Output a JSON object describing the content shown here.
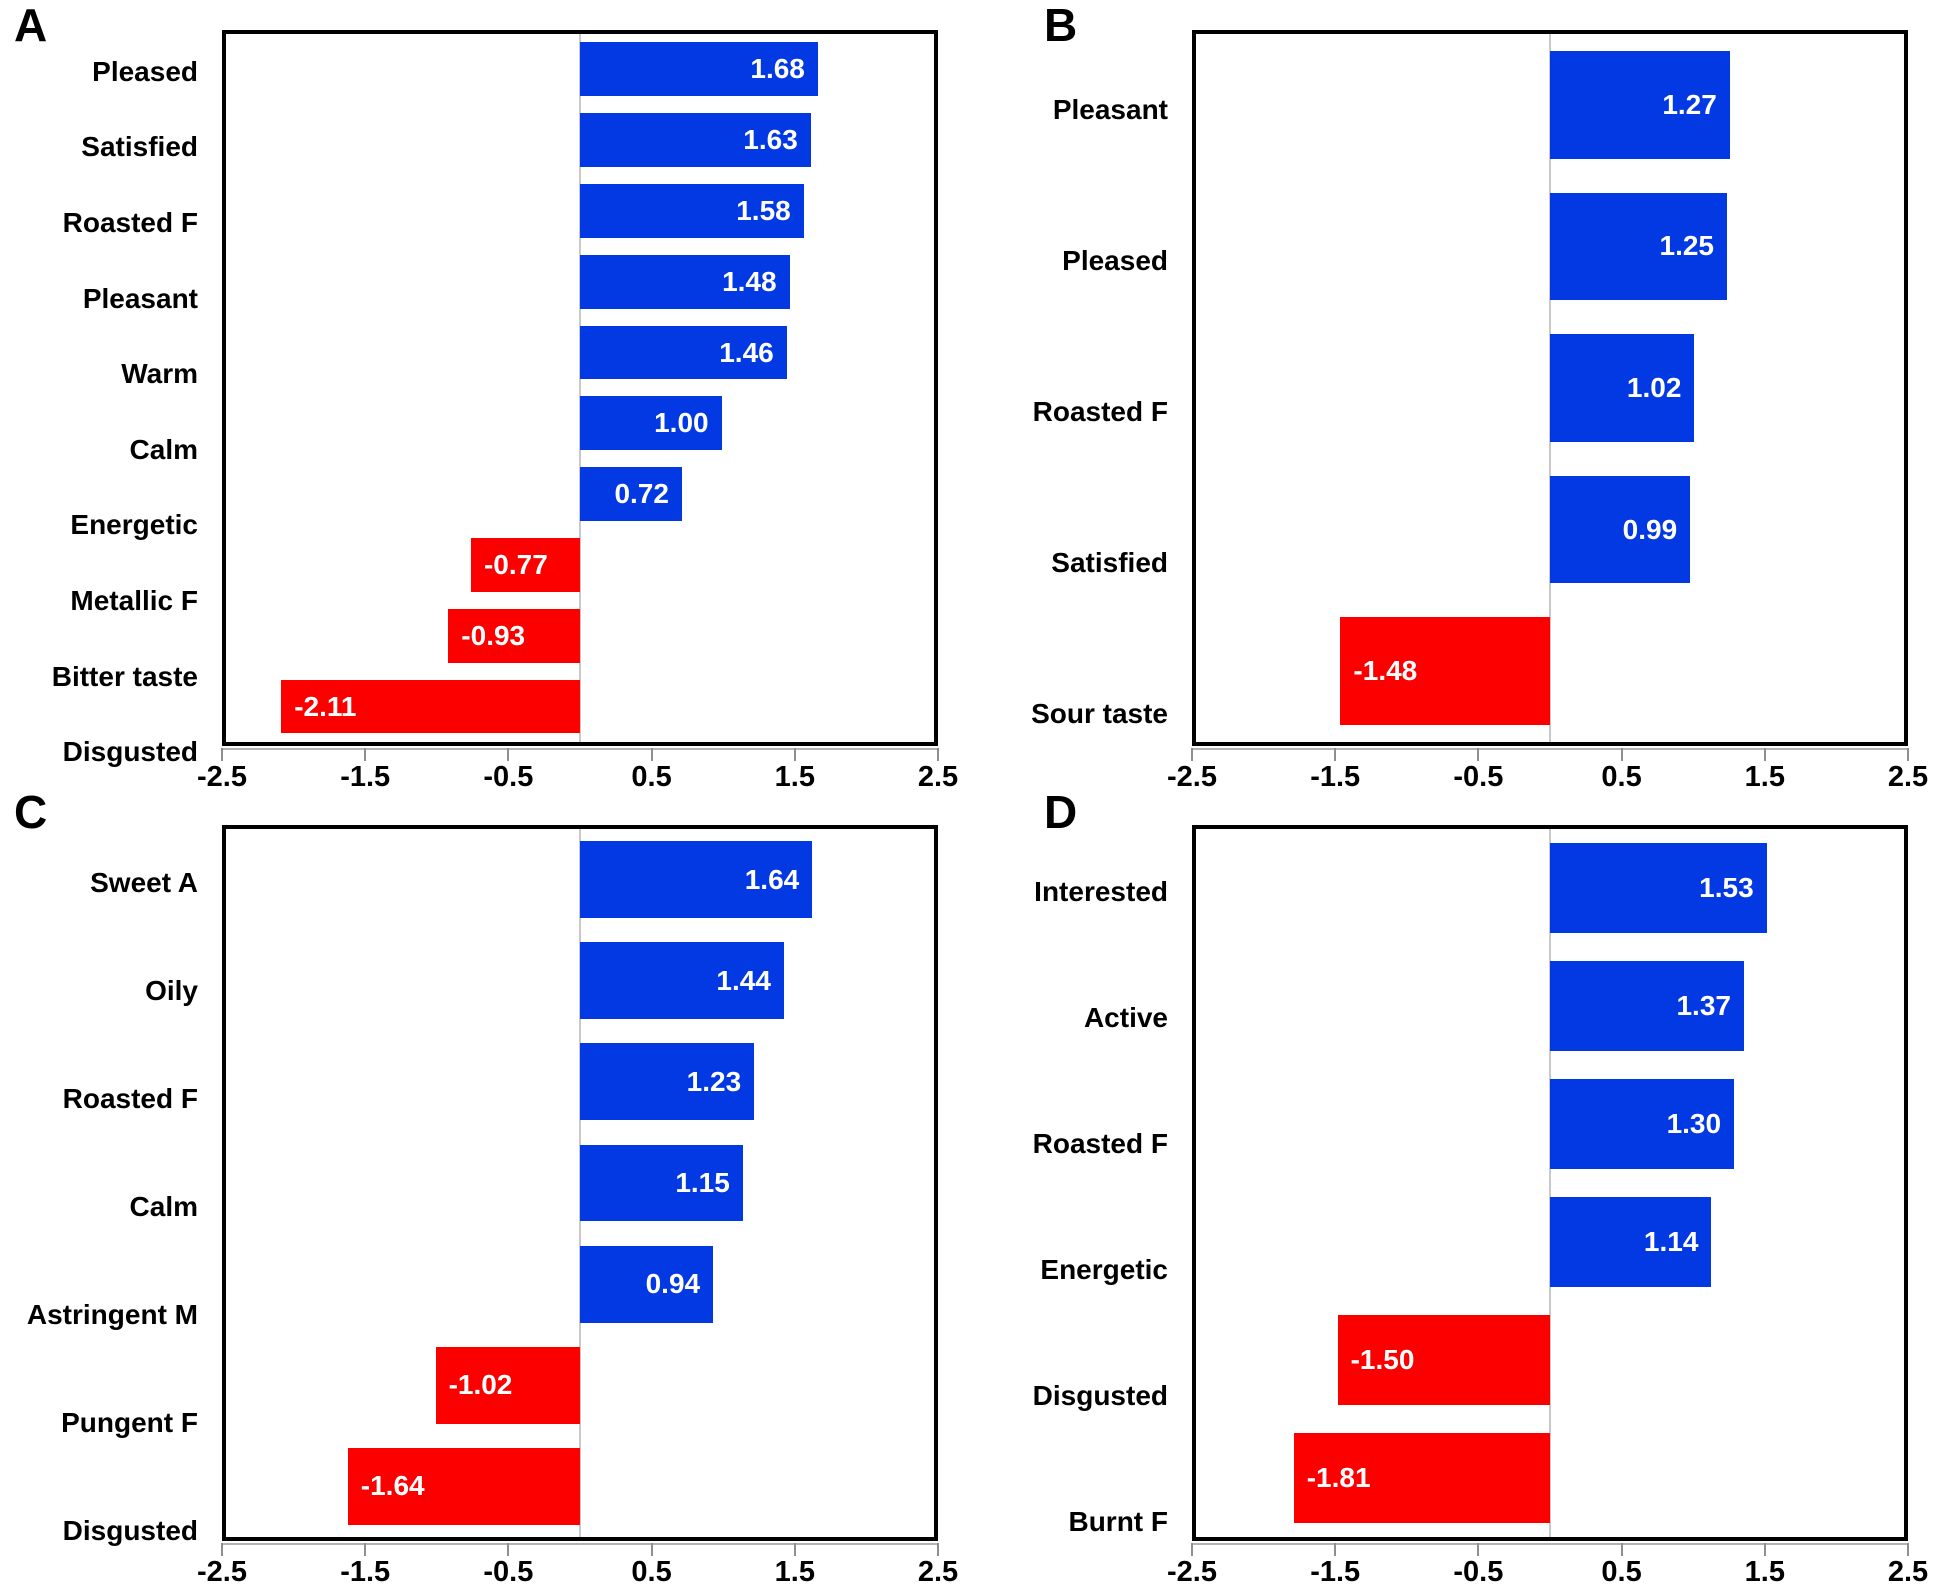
{
  "colors": {
    "positive_bar": "#0339E3",
    "negative_bar": "#FC0000",
    "frame": "#000000",
    "zero_line": "#C9C9C9",
    "tick_mark": "#8F8F8F",
    "axis_shadow": "#B3B3B3",
    "value_text": "#FFFFFF",
    "label_text": "#000000"
  },
  "chart_data": [
    {
      "type": "bar",
      "orientation": "horizontal",
      "panel": "A",
      "categories": [
        "Pleased",
        "Satisfied",
        "Roasted F",
        "Pleasant",
        "Warm",
        "Calm",
        "Energetic",
        "Metallic F",
        "Bitter taste",
        "Disgusted"
      ],
      "values": [
        1.68,
        1.63,
        1.58,
        1.48,
        1.46,
        1.0,
        0.72,
        -0.77,
        -0.93,
        -2.11
      ],
      "value_labels": [
        "1.68",
        "1.63",
        "1.58",
        "1.48",
        "1.46",
        "1.00",
        "0.72",
        "-0.77",
        "-0.93",
        "-2.11"
      ],
      "xlim": [
        -2.5,
        2.5
      ],
      "xticks": [
        -2.5,
        -1.5,
        -0.5,
        0.5,
        1.5,
        2.5
      ],
      "xtick_labels": [
        "-2.5",
        "-1.5",
        "-0.5",
        "0.5",
        "1.5",
        "2.5"
      ],
      "positive_color": "#0339E3",
      "negative_color": "#FC0000",
      "grid": false,
      "legend": null
    },
    {
      "type": "bar",
      "orientation": "horizontal",
      "panel": "B",
      "categories": [
        "Pleasant",
        "Pleased",
        "Roasted F",
        "Satisfied",
        "Sour taste"
      ],
      "values": [
        1.27,
        1.25,
        1.02,
        0.99,
        -1.48
      ],
      "value_labels": [
        "1.27",
        "1.25",
        "1.02",
        "0.99",
        "-1.48"
      ],
      "xlim": [
        -2.5,
        2.5
      ],
      "xticks": [
        -2.5,
        -1.5,
        -0.5,
        0.5,
        1.5,
        2.5
      ],
      "xtick_labels": [
        "-2.5",
        "-1.5",
        "-0.5",
        "0.5",
        "1.5",
        "2.5"
      ],
      "positive_color": "#0339E3",
      "negative_color": "#FC0000",
      "grid": false,
      "legend": null
    },
    {
      "type": "bar",
      "orientation": "horizontal",
      "panel": "C",
      "categories": [
        "Sweet A",
        "Oily",
        "Roasted F",
        "Calm",
        "Astringent M",
        "Pungent F",
        "Disgusted"
      ],
      "values": [
        1.64,
        1.44,
        1.23,
        1.15,
        0.94,
        -1.02,
        -1.64
      ],
      "value_labels": [
        "1.64",
        "1.44",
        "1.23",
        "1.15",
        "0.94",
        "-1.02",
        "-1.64"
      ],
      "xlim": [
        -2.5,
        2.5
      ],
      "xticks": [
        -2.5,
        -1.5,
        -0.5,
        0.5,
        1.5,
        2.5
      ],
      "xtick_labels": [
        "-2.5",
        "-1.5",
        "-0.5",
        "0.5",
        "1.5",
        "2.5"
      ],
      "positive_color": "#0339E3",
      "negative_color": "#FC0000",
      "grid": false,
      "legend": null
    },
    {
      "type": "bar",
      "orientation": "horizontal",
      "panel": "D",
      "categories": [
        "Interested",
        "Active",
        "Roasted F",
        "Energetic",
        "Disgusted",
        "Burnt F"
      ],
      "values": [
        1.53,
        1.37,
        1.3,
        1.14,
        -1.5,
        -1.81
      ],
      "value_labels": [
        "1.53",
        "1.37",
        "1.30",
        "1.14",
        "-1.50",
        "-1.81"
      ],
      "xlim": [
        -2.5,
        2.5
      ],
      "xticks": [
        -2.5,
        -1.5,
        -0.5,
        0.5,
        1.5,
        2.5
      ],
      "xtick_labels": [
        "-2.5",
        "-1.5",
        "-0.5",
        "0.5",
        "1.5",
        "2.5"
      ],
      "positive_color": "#0339E3",
      "negative_color": "#FC0000",
      "grid": false,
      "legend": null
    }
  ]
}
